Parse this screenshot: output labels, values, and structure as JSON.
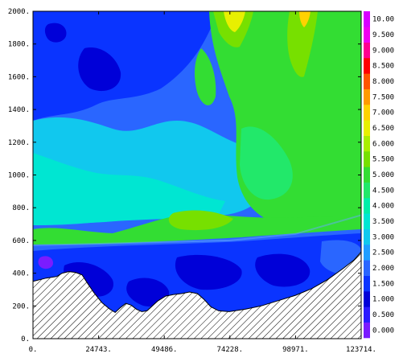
{
  "chart_data": {
    "type": "heatmap",
    "title": "",
    "xlabel": "",
    "ylabel": "",
    "xlim": [
      0,
      123714
    ],
    "ylim": [
      0,
      2000
    ],
    "x_ticks": [
      {
        "value": 0,
        "label": "0."
      },
      {
        "value": 24743,
        "label": "24743."
      },
      {
        "value": 49486,
        "label": "49486."
      },
      {
        "value": 74228,
        "label": "74228."
      },
      {
        "value": 98971,
        "label": "98971."
      },
      {
        "value": 123714,
        "label": "123714."
      }
    ],
    "y_ticks": [
      {
        "value": 0,
        "label": "0."
      },
      {
        "value": 200,
        "label": "200."
      },
      {
        "value": 400,
        "label": "400."
      },
      {
        "value": 600,
        "label": "600."
      },
      {
        "value": 800,
        "label": "800."
      },
      {
        "value": 1000,
        "label": "1000."
      },
      {
        "value": 1200,
        "label": "1200."
      },
      {
        "value": 1400,
        "label": "1400."
      },
      {
        "value": 1600,
        "label": "1600."
      },
      {
        "value": 1800,
        "label": "1800."
      },
      {
        "value": 2000,
        "label": "2000."
      }
    ],
    "colorbar": {
      "levels": [
        "0.000",
        "0.500",
        "1.000",
        "1.500",
        "2.000",
        "2.500",
        "3.000",
        "3.500",
        "4.000",
        "4.500",
        "5.000",
        "5.500",
        "6.000",
        "6.500",
        "7.000",
        "7.500",
        "8.000",
        "8.500",
        "9.000",
        "9.500",
        "10.00"
      ],
      "colors": [
        "#7a1cff",
        "#2a1aff",
        "#0000d8",
        "#0a34ff",
        "#2a66ff",
        "#1f9eff",
        "#11c8ee",
        "#00e6d2",
        "#00eeaa",
        "#22e86a",
        "#33dd33",
        "#77e000",
        "#aaee00",
        "#e8f000",
        "#ffd200",
        "#ff9a00",
        "#ff5500",
        "#ff0000",
        "#ff0090",
        "#f000f0",
        "#d800ff"
      ]
    },
    "grid": false,
    "legend": "colorbar-right",
    "terrain_profile": [
      {
        "x": 0,
        "y": 350
      },
      {
        "x": 5000,
        "y": 370
      },
      {
        "x": 9000,
        "y": 380
      },
      {
        "x": 11000,
        "y": 400
      },
      {
        "x": 13500,
        "y": 410
      },
      {
        "x": 16000,
        "y": 405
      },
      {
        "x": 18500,
        "y": 390
      },
      {
        "x": 20500,
        "y": 340
      },
      {
        "x": 23000,
        "y": 280
      },
      {
        "x": 26000,
        "y": 220
      },
      {
        "x": 29000,
        "y": 180
      },
      {
        "x": 31000,
        "y": 160
      },
      {
        "x": 33000,
        "y": 190
      },
      {
        "x": 35000,
        "y": 215
      },
      {
        "x": 37000,
        "y": 205
      },
      {
        "x": 39000,
        "y": 180
      },
      {
        "x": 41000,
        "y": 165
      },
      {
        "x": 43000,
        "y": 170
      },
      {
        "x": 45000,
        "y": 200
      },
      {
        "x": 47000,
        "y": 230
      },
      {
        "x": 50000,
        "y": 260
      },
      {
        "x": 53000,
        "y": 270
      },
      {
        "x": 56000,
        "y": 275
      },
      {
        "x": 59000,
        "y": 285
      },
      {
        "x": 62000,
        "y": 275
      },
      {
        "x": 64500,
        "y": 240
      },
      {
        "x": 67000,
        "y": 195
      },
      {
        "x": 70000,
        "y": 170
      },
      {
        "x": 74000,
        "y": 165
      },
      {
        "x": 80000,
        "y": 180
      },
      {
        "x": 86000,
        "y": 200
      },
      {
        "x": 92000,
        "y": 230
      },
      {
        "x": 98971,
        "y": 265
      },
      {
        "x": 105000,
        "y": 305
      },
      {
        "x": 111000,
        "y": 360
      },
      {
        "x": 117000,
        "y": 430
      },
      {
        "x": 121000,
        "y": 480
      },
      {
        "x": 123714,
        "y": 530
      }
    ],
    "inversion_profile": [
      {
        "x": 0,
        "y": 570
      },
      {
        "x": 24743,
        "y": 580
      },
      {
        "x": 49486,
        "y": 590
      },
      {
        "x": 74228,
        "y": 600
      },
      {
        "x": 98971,
        "y": 640
      },
      {
        "x": 123714,
        "y": 755
      }
    ]
  }
}
